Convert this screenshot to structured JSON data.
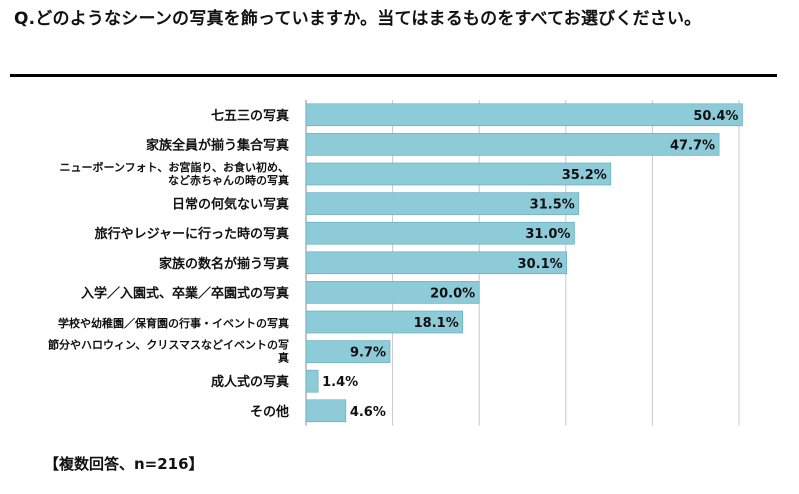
{
  "title": "Q.どのようなシーンの写真を飾っていますか。当てはまるものをすべてお選びください。",
  "note": "【複数回答、n=216】",
  "colors": {
    "bar": "#8ecbd9",
    "bar_stroke": "#5aa8bb",
    "grid": "#c8c8c8",
    "axis": "#888888"
  },
  "chart_data": {
    "type": "bar",
    "orientation": "horizontal",
    "title": "Q.どのようなシーンの写真を飾っていますか。当てはまるものをすべてお選びください。",
    "xlabel": "",
    "ylabel": "",
    "xlim": [
      0,
      50
    ],
    "grid": true,
    "value_suffix": "%",
    "categories": [
      "七五三の写真",
      "家族全員が揃う集合写真",
      "ニューボーンフォト、お宮詣り、お食い初め、など赤ちゃんの時の写真",
      "日常の何気ない写真",
      "旅行やレジャーに行った時の写真",
      "家族の数名が揃う写真",
      "入学／入園式、卒業／卒園式の写真",
      "学校や幼稚園／保育園の行事・イベントの写真",
      "節分やハロウィン、クリスマスなどイベントの写真",
      "成人式の写真",
      "その他"
    ],
    "values": [
      50.4,
      47.7,
      35.2,
      31.5,
      31.0,
      30.1,
      20.0,
      18.1,
      9.7,
      1.4,
      4.6
    ]
  }
}
